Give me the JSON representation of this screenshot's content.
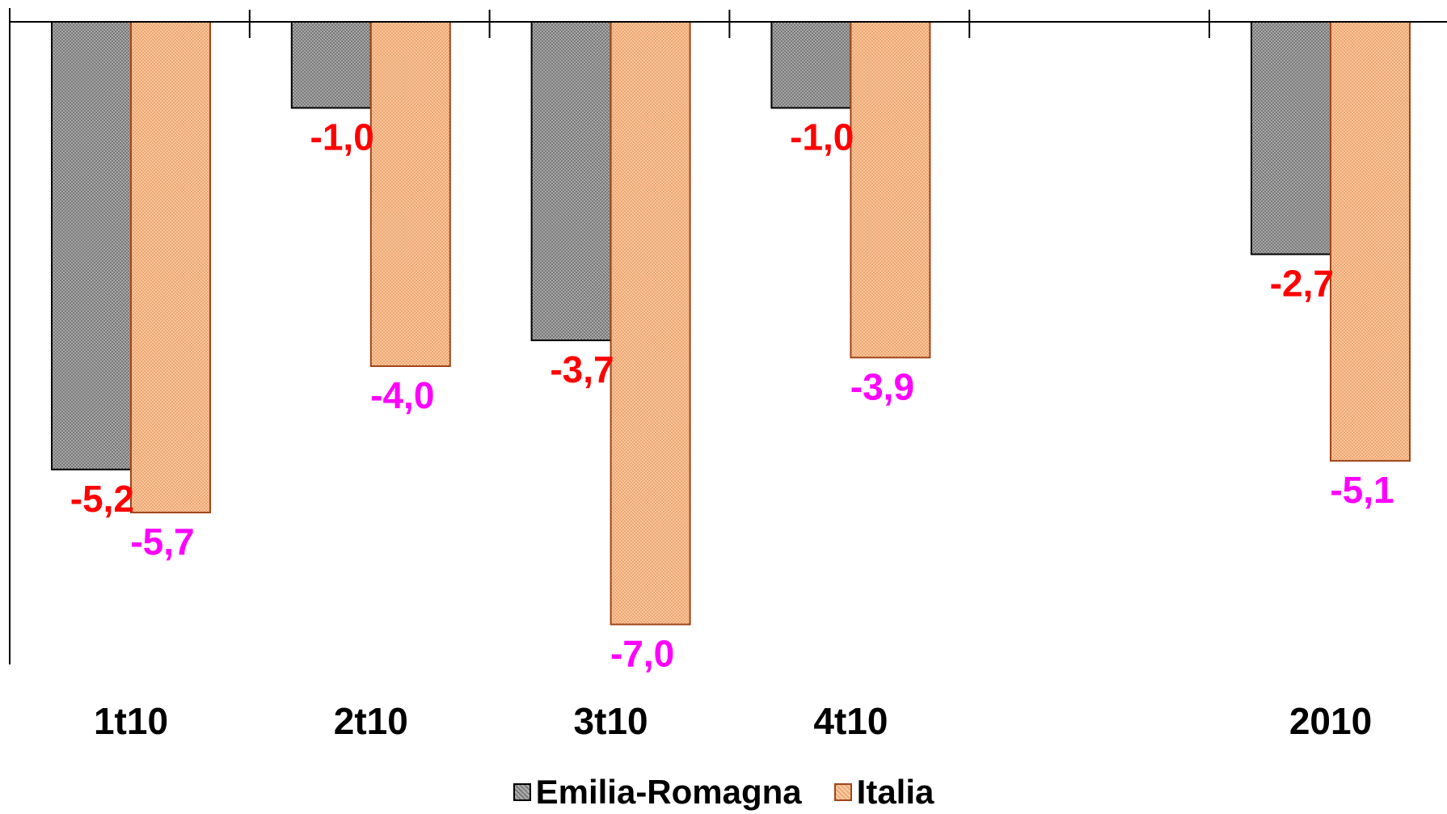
{
  "chart_data": {
    "type": "bar",
    "categories": [
      "1t10",
      "2t10",
      "3t10",
      "4t10",
      "",
      "2010"
    ],
    "series": [
      {
        "name": "Emilia-Romagna",
        "values": [
          -5.2,
          -1.0,
          -3.7,
          -1.0,
          null,
          -2.7
        ],
        "labels": [
          "-5,2",
          "-1,0",
          "-3,7",
          "-1,0",
          "",
          "-2,7"
        ],
        "fill": "#9a9a9a",
        "stroke": "#000000",
        "label_color": "#ff0000"
      },
      {
        "name": "Italia",
        "values": [
          -5.7,
          -4.0,
          -7.0,
          -3.9,
          null,
          -5.1
        ],
        "labels": [
          "-5,7",
          "-4,0",
          "-7,0",
          "-3,9",
          "",
          "-5,1"
        ],
        "fill": "#f5b98a",
        "stroke": "#a0451a",
        "label_color": "#ff00ff"
      }
    ],
    "ylim": [
      -7.5,
      0
    ],
    "grid": false,
    "legend": "bottom"
  },
  "legend": {
    "items": [
      {
        "label": "Emilia-Romagna",
        "color": "#9a9a9a"
      },
      {
        "label": "Italia",
        "color": "#f5b98a"
      }
    ]
  }
}
